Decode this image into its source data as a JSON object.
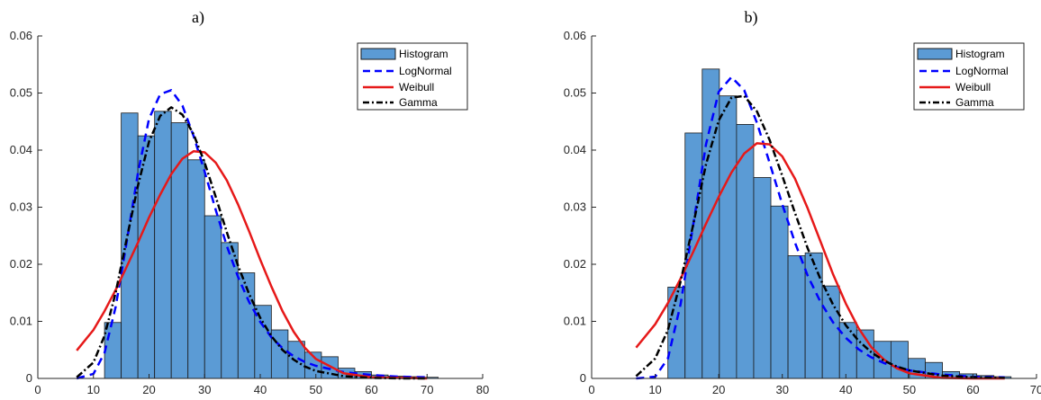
{
  "colors": {
    "histogram_fill": "#5b9bd5",
    "histogram_edge": "#1a1a1a",
    "lognormal": "#0000ff",
    "weibull": "#e61919",
    "gamma": "#000000",
    "axis": "#262626"
  },
  "legend": {
    "histogram": "Histogram",
    "lognormal": "LogNormal",
    "weibull": "Weibull",
    "gamma": "Gamma"
  },
  "chart_data": [
    {
      "type": "bar",
      "title": "a)",
      "xlim": [
        0,
        80
      ],
      "ylim": [
        0,
        0.06
      ],
      "xticks": [
        "0",
        "10",
        "20",
        "30",
        "40",
        "50",
        "60",
        "70",
        "80"
      ],
      "yticks": [
        "0",
        "0.01",
        "0.02",
        "0.03",
        "0.04",
        "0.05",
        "0.06"
      ],
      "legend_position": "top-right",
      "histogram": {
        "bin_edges": [
          12,
          15,
          18,
          21,
          24,
          27,
          30,
          33,
          36,
          39,
          42,
          45,
          48,
          51,
          54,
          57,
          60,
          63,
          66,
          69,
          72
        ],
        "values": [
          0.0098,
          0.0465,
          0.0425,
          0.0468,
          0.0448,
          0.0383,
          0.0285,
          0.0238,
          0.0185,
          0.0128,
          0.0085,
          0.0065,
          0.0046,
          0.0038,
          0.0018,
          0.0012,
          0.0006,
          0.0004,
          0.0003,
          0.0002
        ]
      },
      "series": [
        {
          "name": "LogNormal",
          "x": [
            7,
            10,
            12,
            14,
            16,
            18,
            20,
            22,
            24,
            26,
            28,
            30,
            32,
            34,
            36,
            38,
            40,
            42,
            44,
            46,
            48,
            50,
            55,
            60,
            65,
            70
          ],
          "y": [
            0,
            0.0008,
            0.0045,
            0.0125,
            0.024,
            0.036,
            0.0455,
            0.0498,
            0.0505,
            0.0478,
            0.0425,
            0.0362,
            0.0295,
            0.0232,
            0.0178,
            0.0134,
            0.0099,
            0.0072,
            0.0053,
            0.0039,
            0.0029,
            0.0022,
            0.0011,
            0.0006,
            0.0003,
            0.0002
          ]
        },
        {
          "name": "Weibull",
          "x": [
            7,
            10,
            12,
            14,
            16,
            18,
            20,
            22,
            24,
            26,
            28,
            30,
            32,
            34,
            36,
            38,
            40,
            42,
            44,
            46,
            48,
            50,
            55,
            60,
            65,
            70
          ],
          "y": [
            0.0049,
            0.0085,
            0.0118,
            0.0155,
            0.0196,
            0.0238,
            0.0282,
            0.0322,
            0.0358,
            0.0385,
            0.0398,
            0.0396,
            0.0378,
            0.0347,
            0.0305,
            0.0258,
            0.0208,
            0.0161,
            0.0118,
            0.0082,
            0.0054,
            0.0034,
            0.0009,
            0.0002,
            0.0001,
            0
          ]
        },
        {
          "name": "Gamma",
          "x": [
            7,
            10,
            12,
            14,
            16,
            18,
            20,
            22,
            24,
            26,
            28,
            30,
            32,
            34,
            36,
            38,
            40,
            42,
            44,
            46,
            48,
            50,
            55,
            60,
            65,
            70
          ],
          "y": [
            0.0002,
            0.0028,
            0.0075,
            0.015,
            0.0245,
            0.0338,
            0.0415,
            0.046,
            0.0475,
            0.0462,
            0.0428,
            0.0378,
            0.0318,
            0.0256,
            0.0198,
            0.0148,
            0.0106,
            0.0074,
            0.005,
            0.0033,
            0.0021,
            0.0013,
            0.0004,
            0.0001,
            0,
            0
          ]
        }
      ]
    },
    {
      "type": "bar",
      "title": "b)",
      "xlim": [
        0,
        70
      ],
      "ylim": [
        0,
        0.06
      ],
      "xticks": [
        "0",
        "10",
        "20",
        "30",
        "40",
        "50",
        "60",
        "70"
      ],
      "yticks": [
        "0",
        "0.01",
        "0.02",
        "0.03",
        "0.04",
        "0.05",
        "0.06"
      ],
      "legend_position": "top-right",
      "histogram": {
        "bin_edges": [
          12,
          14.7,
          17.4,
          20.1,
          22.8,
          25.5,
          28.2,
          30.9,
          33.6,
          36.3,
          39,
          41.7,
          44.4,
          47.1,
          49.8,
          52.5,
          55.2,
          57.9,
          60.6,
          63.3,
          66
        ],
        "values": [
          0.016,
          0.043,
          0.0542,
          0.0495,
          0.0445,
          0.0352,
          0.0302,
          0.0215,
          0.022,
          0.0162,
          0.0098,
          0.0085,
          0.0065,
          0.0065,
          0.0035,
          0.0028,
          0.0012,
          0.0008,
          0.0005,
          0.0003
        ]
      },
      "series": [
        {
          "name": "LogNormal",
          "x": [
            7,
            10,
            12,
            14,
            16,
            18,
            20,
            22,
            24,
            26,
            28,
            30,
            32,
            34,
            36,
            38,
            40,
            42,
            44,
            46,
            48,
            50,
            55,
            60,
            65
          ],
          "y": [
            0,
            0.0003,
            0.0035,
            0.013,
            0.027,
            0.041,
            0.0502,
            0.0528,
            0.0505,
            0.0448,
            0.0378,
            0.0305,
            0.0238,
            0.018,
            0.0134,
            0.0098,
            0.0071,
            0.0051,
            0.0037,
            0.0027,
            0.002,
            0.0014,
            0.0007,
            0.0003,
            0.0002
          ]
        },
        {
          "name": "Weibull",
          "x": [
            7,
            10,
            12,
            14,
            16,
            18,
            20,
            22,
            24,
            26,
            28,
            30,
            32,
            34,
            36,
            38,
            40,
            42,
            44,
            46,
            48,
            50,
            55,
            60,
            65
          ],
          "y": [
            0.0054,
            0.0095,
            0.0132,
            0.0175,
            0.0222,
            0.0271,
            0.0318,
            0.0361,
            0.0394,
            0.0412,
            0.041,
            0.0389,
            0.035,
            0.0298,
            0.024,
            0.0182,
            0.0131,
            0.0088,
            0.0055,
            0.0033,
            0.0018,
            0.0009,
            0.0001,
            0,
            0
          ]
        },
        {
          "name": "Gamma",
          "x": [
            7,
            10,
            12,
            14,
            16,
            18,
            20,
            22,
            24,
            26,
            28,
            30,
            32,
            34,
            36,
            38,
            40,
            42,
            44,
            46,
            48,
            50,
            55,
            60,
            65
          ],
          "y": [
            0.0004,
            0.0035,
            0.0085,
            0.017,
            0.027,
            0.0375,
            0.0452,
            0.0492,
            0.0495,
            0.0468,
            0.0418,
            0.0355,
            0.029,
            0.0228,
            0.0174,
            0.0129,
            0.0093,
            0.0066,
            0.0046,
            0.0031,
            0.0021,
            0.0014,
            0.0005,
            0.0002,
            0.0001
          ]
        }
      ]
    }
  ]
}
